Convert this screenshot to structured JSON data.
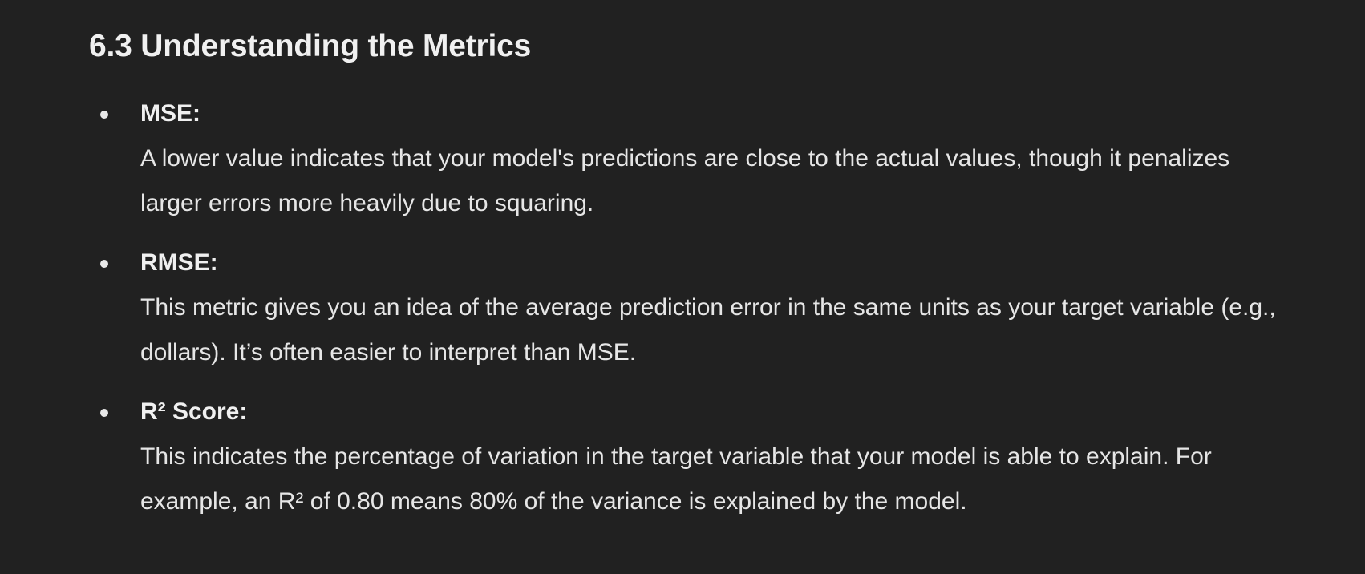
{
  "section": {
    "heading": "6.3 Understanding the Metrics"
  },
  "metrics": [
    {
      "term": "MSE:",
      "description": "A lower value indicates that your model's predictions are close to the actual values, though it penalizes larger errors more heavily due to squaring."
    },
    {
      "term": "RMSE:",
      "description": "This metric gives you an idea of the average prediction error in the same units as your target variable (e.g., dollars). It’s often easier to interpret than MSE."
    },
    {
      "term": "R² Score:",
      "description": "This indicates the percentage of variation in the target variable that your model is able to explain. For example, an R² of 0.80 means 80% of the variance is explained by the model."
    }
  ]
}
